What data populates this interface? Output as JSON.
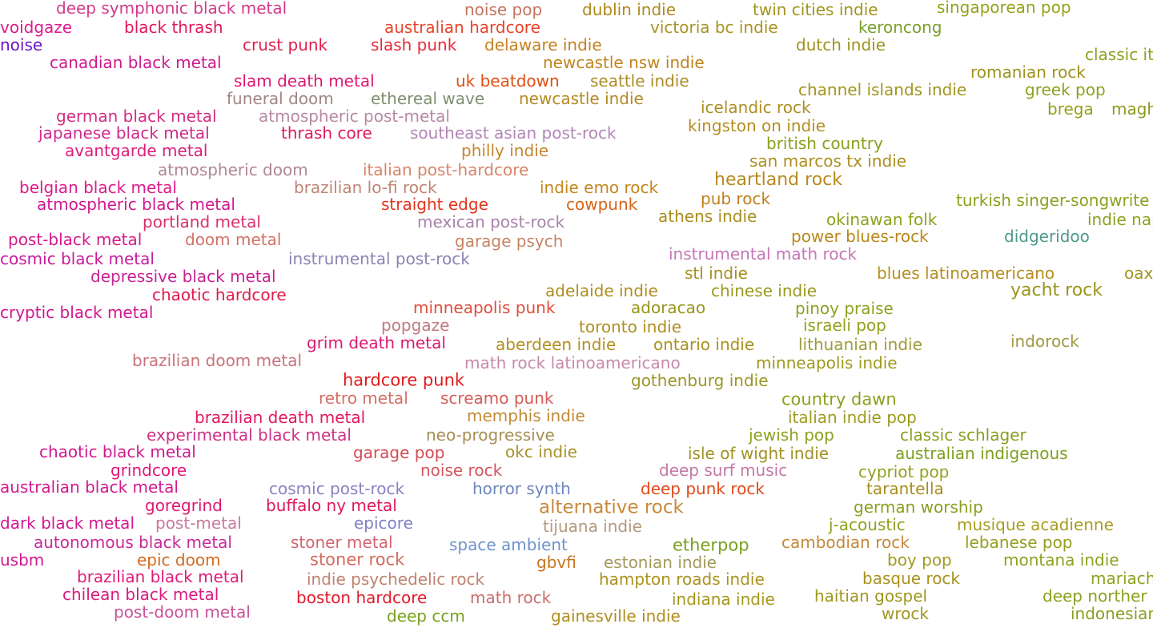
{
  "genres": [
    {
      "label": "deep symphonic black metal",
      "color": "#d23a8a"
    },
    {
      "label": "voidgaze",
      "color": "#dd1a8e"
    },
    {
      "label": "noise",
      "color": "#6a14c4"
    },
    {
      "label": "black thrash",
      "color": "#e0175f"
    },
    {
      "label": "canadian black metal",
      "color": "#d0198e"
    },
    {
      "label": "crust punk",
      "color": "#e21d4b"
    },
    {
      "label": "slash punk",
      "color": "#e52a3a"
    },
    {
      "label": "noise pop",
      "color": "#c4745f"
    },
    {
      "label": "australian hardcore",
      "color": "#e8442a"
    },
    {
      "label": "dublin indie",
      "color": "#ae8a1b"
    },
    {
      "label": "delaware indie",
      "color": "#c88020"
    },
    {
      "label": "victoria bc indie",
      "color": "#a89324"
    },
    {
      "label": "twin cities indie",
      "color": "#a0951d"
    },
    {
      "label": "keroncong",
      "color": "#78a02a"
    },
    {
      "label": "singaporean pop",
      "color": "#94a31a"
    },
    {
      "label": "dutch indie",
      "color": "#a0911e"
    },
    {
      "label": "classic it",
      "color": "#8aa021"
    },
    {
      "label": "newcastle nsw indie",
      "color": "#c0841e"
    },
    {
      "label": "romanian rock",
      "color": "#9e931c"
    },
    {
      "label": "slam death metal",
      "color": "#e11870"
    },
    {
      "label": "uk beatdown",
      "color": "#e24e14"
    },
    {
      "label": "seattle indie",
      "color": "#ad8c28"
    },
    {
      "label": "channel islands indie",
      "color": "#a2951d"
    },
    {
      "label": "greek pop",
      "color": "#8fa01e"
    },
    {
      "label": "funeral doom",
      "color": "#a28688"
    },
    {
      "label": "ethereal wave",
      "color": "#7d9070"
    },
    {
      "label": "newcastle indie",
      "color": "#b48a22"
    },
    {
      "label": "brega",
      "color": "#94a01a"
    },
    {
      "label": "magh",
      "color": "#8c9a1e"
    },
    {
      "label": "german black metal",
      "color": "#d22f82"
    },
    {
      "label": "atmospheric post-metal",
      "color": "#b88aa2"
    },
    {
      "label": "icelandic rock",
      "color": "#ad8e22"
    },
    {
      "label": "japanese black metal",
      "color": "#d1298e"
    },
    {
      "label": "thrash core",
      "color": "#e01860"
    },
    {
      "label": "southeast asian post-rock",
      "color": "#b286b6"
    },
    {
      "label": "kingston on indie",
      "color": "#b48e1e"
    },
    {
      "label": "avantgarde metal",
      "color": "#dd1e7a"
    },
    {
      "label": "philly indie",
      "color": "#c4862c"
    },
    {
      "label": "british country",
      "color": "#8e9e1e"
    },
    {
      "label": "san marcos tx indie",
      "color": "#ab8e1e"
    },
    {
      "label": "atmospheric doom",
      "color": "#b28694"
    },
    {
      "label": "italian post-hardcore",
      "color": "#d88468"
    },
    {
      "label": "heartland rock",
      "color": "#b78a1e"
    },
    {
      "label": "belgian black metal",
      "color": "#dd1a8a"
    },
    {
      "label": "brazilian lo-fi rock",
      "color": "#c08474"
    },
    {
      "label": "indie emo rock",
      "color": "#c4861c"
    },
    {
      "label": "atmospheric black metal",
      "color": "#d0198e"
    },
    {
      "label": "straight edge",
      "color": "#e4341e"
    },
    {
      "label": "cowpunk",
      "color": "#d86418"
    },
    {
      "label": "pub rock",
      "color": "#c27e1c"
    },
    {
      "label": "turkish singer-songwrite",
      "color": "#8ea01e"
    },
    {
      "label": "portland metal",
      "color": "#d8306e"
    },
    {
      "label": "mexican post-rock",
      "color": "#a882ac"
    },
    {
      "label": "athens indie",
      "color": "#a88e1e"
    },
    {
      "label": "okinawan folk",
      "color": "#8ea21e"
    },
    {
      "label": "indie nap",
      "color": "#8aa21e"
    },
    {
      "label": "post-black metal",
      "color": "#d41a8a"
    },
    {
      "label": "doom metal",
      "color": "#d07468"
    },
    {
      "label": "garage psych",
      "color": "#c68664"
    },
    {
      "label": "power blues-rock",
      "color": "#b8881c"
    },
    {
      "label": "didgeridoo",
      "color": "#4e9a8a"
    },
    {
      "label": "cosmic black metal",
      "color": "#c81a9c"
    },
    {
      "label": "instrumental post-rock",
      "color": "#8e82b4"
    },
    {
      "label": "instrumental math rock",
      "color": "#c476b6"
    },
    {
      "label": "depressive black metal",
      "color": "#c82294"
    },
    {
      "label": "stl indie",
      "color": "#a68e1e"
    },
    {
      "label": "blues latinoamericano",
      "color": "#b48e1e"
    },
    {
      "label": "oax",
      "color": "#a0961e"
    },
    {
      "label": "chaotic hardcore",
      "color": "#e01a4a"
    },
    {
      "label": "adelaide indie",
      "color": "#b08e1e"
    },
    {
      "label": "chinese indie",
      "color": "#9a981e"
    },
    {
      "label": "yacht rock",
      "color": "#9a951c"
    },
    {
      "label": "cryptic black metal",
      "color": "#d21690"
    },
    {
      "label": "minneapolis punk",
      "color": "#e24c3c"
    },
    {
      "label": "adoracao",
      "color": "#98961c"
    },
    {
      "label": "pinoy praise",
      "color": "#8ca222"
    },
    {
      "label": "popgaze",
      "color": "#c27a80"
    },
    {
      "label": "toronto indie",
      "color": "#ae8e1e"
    },
    {
      "label": "israeli pop",
      "color": "#94a01e"
    },
    {
      "label": "grim death metal",
      "color": "#dc1870"
    },
    {
      "label": "aberdeen indie",
      "color": "#b4901e"
    },
    {
      "label": "ontario indie",
      "color": "#a8921e"
    },
    {
      "label": "lithuanian indie",
      "color": "#9e9c3a"
    },
    {
      "label": "indorock",
      "color": "#9e9842"
    },
    {
      "label": "brazilian doom metal",
      "color": "#c8747c"
    },
    {
      "label": "math rock latinoamericano",
      "color": "#c88aa8"
    },
    {
      "label": "minneapolis indie",
      "color": "#a0981e"
    },
    {
      "label": "hardcore punk",
      "color": "#e21a1a"
    },
    {
      "label": "gothenburg indie",
      "color": "#9a962a"
    },
    {
      "label": "retro metal",
      "color": "#d46e64"
    },
    {
      "label": "screamo punk",
      "color": "#d45c58"
    },
    {
      "label": "country dawn",
      "color": "#8aa01e"
    },
    {
      "label": "brazilian death metal",
      "color": "#e01860"
    },
    {
      "label": "memphis indie",
      "color": "#c28a34"
    },
    {
      "label": "italian indie pop",
      "color": "#9e9c1e"
    },
    {
      "label": "experimental black metal",
      "color": "#cc3086"
    },
    {
      "label": "neo-progressive",
      "color": "#a68e54"
    },
    {
      "label": "jewish pop",
      "color": "#8ea01e"
    },
    {
      "label": "classic schlager",
      "color": "#8a9e1e"
    },
    {
      "label": "chaotic black metal",
      "color": "#d0198e"
    },
    {
      "label": "garage pop",
      "color": "#d44a52"
    },
    {
      "label": "okc indie",
      "color": "#a8922a"
    },
    {
      "label": "isle of wight indie",
      "color": "#a09224"
    },
    {
      "label": "australian indigenous",
      "color": "#80a01e"
    },
    {
      "label": "grindcore",
      "color": "#e21878"
    },
    {
      "label": "noise rock",
      "color": "#d25660"
    },
    {
      "label": "deep surf music",
      "color": "#c478a4"
    },
    {
      "label": "cypriot pop",
      "color": "#94a01e"
    },
    {
      "label": "australian black metal",
      "color": "#d2198e"
    },
    {
      "label": "cosmic post-rock",
      "color": "#8a82c2"
    },
    {
      "label": "horror synth",
      "color": "#6e86bc"
    },
    {
      "label": "deep punk rock",
      "color": "#e24a1a"
    },
    {
      "label": "tarantella",
      "color": "#a68e1e"
    },
    {
      "label": "goregrind",
      "color": "#e01870"
    },
    {
      "label": "buffalo ny metal",
      "color": "#e0185c"
    },
    {
      "label": "alternative rock",
      "color": "#c88a3c"
    },
    {
      "label": "german worship",
      "color": "#88a01e"
    },
    {
      "label": "dark black metal",
      "color": "#d2198e"
    },
    {
      "label": "post-metal",
      "color": "#c87a9a"
    },
    {
      "label": "epicore",
      "color": "#7e80c4"
    },
    {
      "label": "tijuana indie",
      "color": "#b49a7e"
    },
    {
      "label": "j-acoustic",
      "color": "#90a01e"
    },
    {
      "label": "musique acadienne",
      "color": "#a89c1e"
    },
    {
      "label": "autonomous black metal",
      "color": "#c82a9a"
    },
    {
      "label": "stoner metal",
      "color": "#d26470"
    },
    {
      "label": "space ambient",
      "color": "#6e92cc"
    },
    {
      "label": "etherpop",
      "color": "#7aa01e"
    },
    {
      "label": "cambodian rock",
      "color": "#c4883a"
    },
    {
      "label": "lebanese pop",
      "color": "#94a01e"
    },
    {
      "label": "usbm",
      "color": "#d0198e"
    },
    {
      "label": "epic doom",
      "color": "#d46a1e"
    },
    {
      "label": "stoner rock",
      "color": "#d66a5e"
    },
    {
      "label": "gbvfi",
      "color": "#c8741e"
    },
    {
      "label": "estonian indie",
      "color": "#a29a5a"
    },
    {
      "label": "boy pop",
      "color": "#a09c1e"
    },
    {
      "label": "montana indie",
      "color": "#90a01e"
    },
    {
      "label": "brazilian black metal",
      "color": "#e01a78"
    },
    {
      "label": "indie psychedelic rock",
      "color": "#c08270"
    },
    {
      "label": "hampton roads indie",
      "color": "#aa921e"
    },
    {
      "label": "basque rock",
      "color": "#a8921e"
    },
    {
      "label": "mariach",
      "color": "#8ca21e"
    },
    {
      "label": "chilean black metal",
      "color": "#dc1a7e"
    },
    {
      "label": "boston hardcore",
      "color": "#e21a2a"
    },
    {
      "label": "math rock",
      "color": "#c86e6e"
    },
    {
      "label": "indiana indie",
      "color": "#a8961e"
    },
    {
      "label": "haitian gospel",
      "color": "#9e981e"
    },
    {
      "label": "deep norther",
      "color": "#8ca01e"
    },
    {
      "label": "post-doom metal",
      "color": "#c8529a"
    },
    {
      "label": "deep ccm",
      "color": "#7aa01e"
    },
    {
      "label": "gainesville indie",
      "color": "#b08e1e"
    },
    {
      "label": "wrock",
      "color": "#a0961e"
    },
    {
      "label": "indonesian",
      "color": "#8a9e1e"
    }
  ]
}
